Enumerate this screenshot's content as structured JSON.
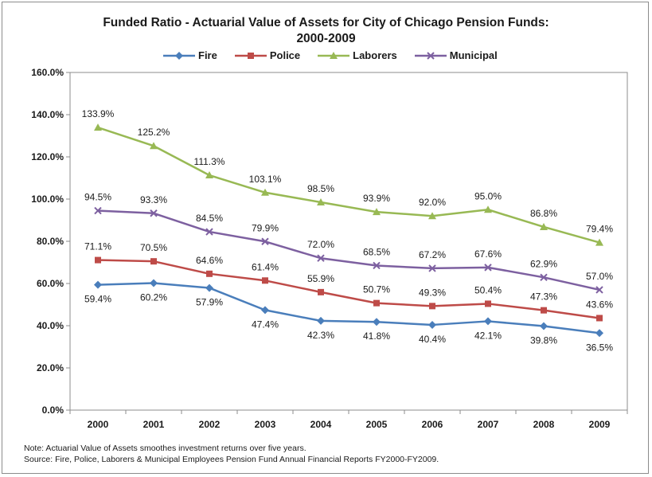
{
  "chart_data": {
    "type": "line",
    "title_line1": "Funded Ratio - Actuarial Value of Assets for City of Chicago Pension Funds:",
    "title_line2": "2000-2009",
    "categories": [
      "2000",
      "2001",
      "2002",
      "2003",
      "2004",
      "2005",
      "2006",
      "2007",
      "2008",
      "2009"
    ],
    "ylim": [
      0,
      160
    ],
    "yticks": [
      0,
      20,
      40,
      60,
      80,
      100,
      120,
      140,
      160
    ],
    "ytick_labels": [
      "0.0%",
      "20.0%",
      "40.0%",
      "60.0%",
      "80.0%",
      "100.0%",
      "120.0%",
      "140.0%",
      "160.0%"
    ],
    "grid": false,
    "legend_position": "top",
    "series": [
      {
        "name": "Fire",
        "color": "#4a7ebb",
        "marker": "diamond",
        "values": [
          59.4,
          60.2,
          57.9,
          47.4,
          42.3,
          41.8,
          40.4,
          42.1,
          39.8,
          36.5
        ],
        "labels": [
          "59.4%",
          "60.2%",
          "57.9%",
          "47.4%",
          "42.3%",
          "41.8%",
          "40.4%",
          "42.1%",
          "39.8%",
          "36.5%"
        ],
        "label_position": "below"
      },
      {
        "name": "Police",
        "color": "#be4b48",
        "marker": "square",
        "values": [
          71.1,
          70.5,
          64.6,
          61.4,
          55.9,
          50.7,
          49.3,
          50.4,
          47.3,
          43.6
        ],
        "labels": [
          "71.1%",
          "70.5%",
          "64.6%",
          "61.4%",
          "55.9%",
          "50.7%",
          "49.3%",
          "50.4%",
          "47.3%",
          "43.6%"
        ],
        "label_position": "above"
      },
      {
        "name": "Laborers",
        "color": "#98b954",
        "marker": "triangle",
        "values": [
          133.9,
          125.2,
          111.3,
          103.1,
          98.5,
          93.9,
          92.0,
          95.0,
          86.8,
          79.4
        ],
        "labels": [
          "133.9%",
          "125.2%",
          "111.3%",
          "103.1%",
          "98.5%",
          "93.9%",
          "92.0%",
          "95.0%",
          "86.8%",
          "79.4%"
        ],
        "label_position": "above"
      },
      {
        "name": "Municipal",
        "color": "#7d60a0",
        "marker": "x",
        "values": [
          94.5,
          93.3,
          84.5,
          79.9,
          72.0,
          68.5,
          67.2,
          67.6,
          62.9,
          57.0
        ],
        "labels": [
          "94.5%",
          "93.3%",
          "84.5%",
          "79.9%",
          "72.0%",
          "68.5%",
          "67.2%",
          "67.6%",
          "62.9%",
          "57.0%"
        ],
        "label_position": "above"
      }
    ]
  },
  "notes": {
    "line1": "Note: Actuarial Value of Assets smoothes investment returns over five years.",
    "line2": "Source: Fire, Police, Laborers & Municipal Employees Pension Fund Annual Financial Reports FY2000-FY2009."
  }
}
